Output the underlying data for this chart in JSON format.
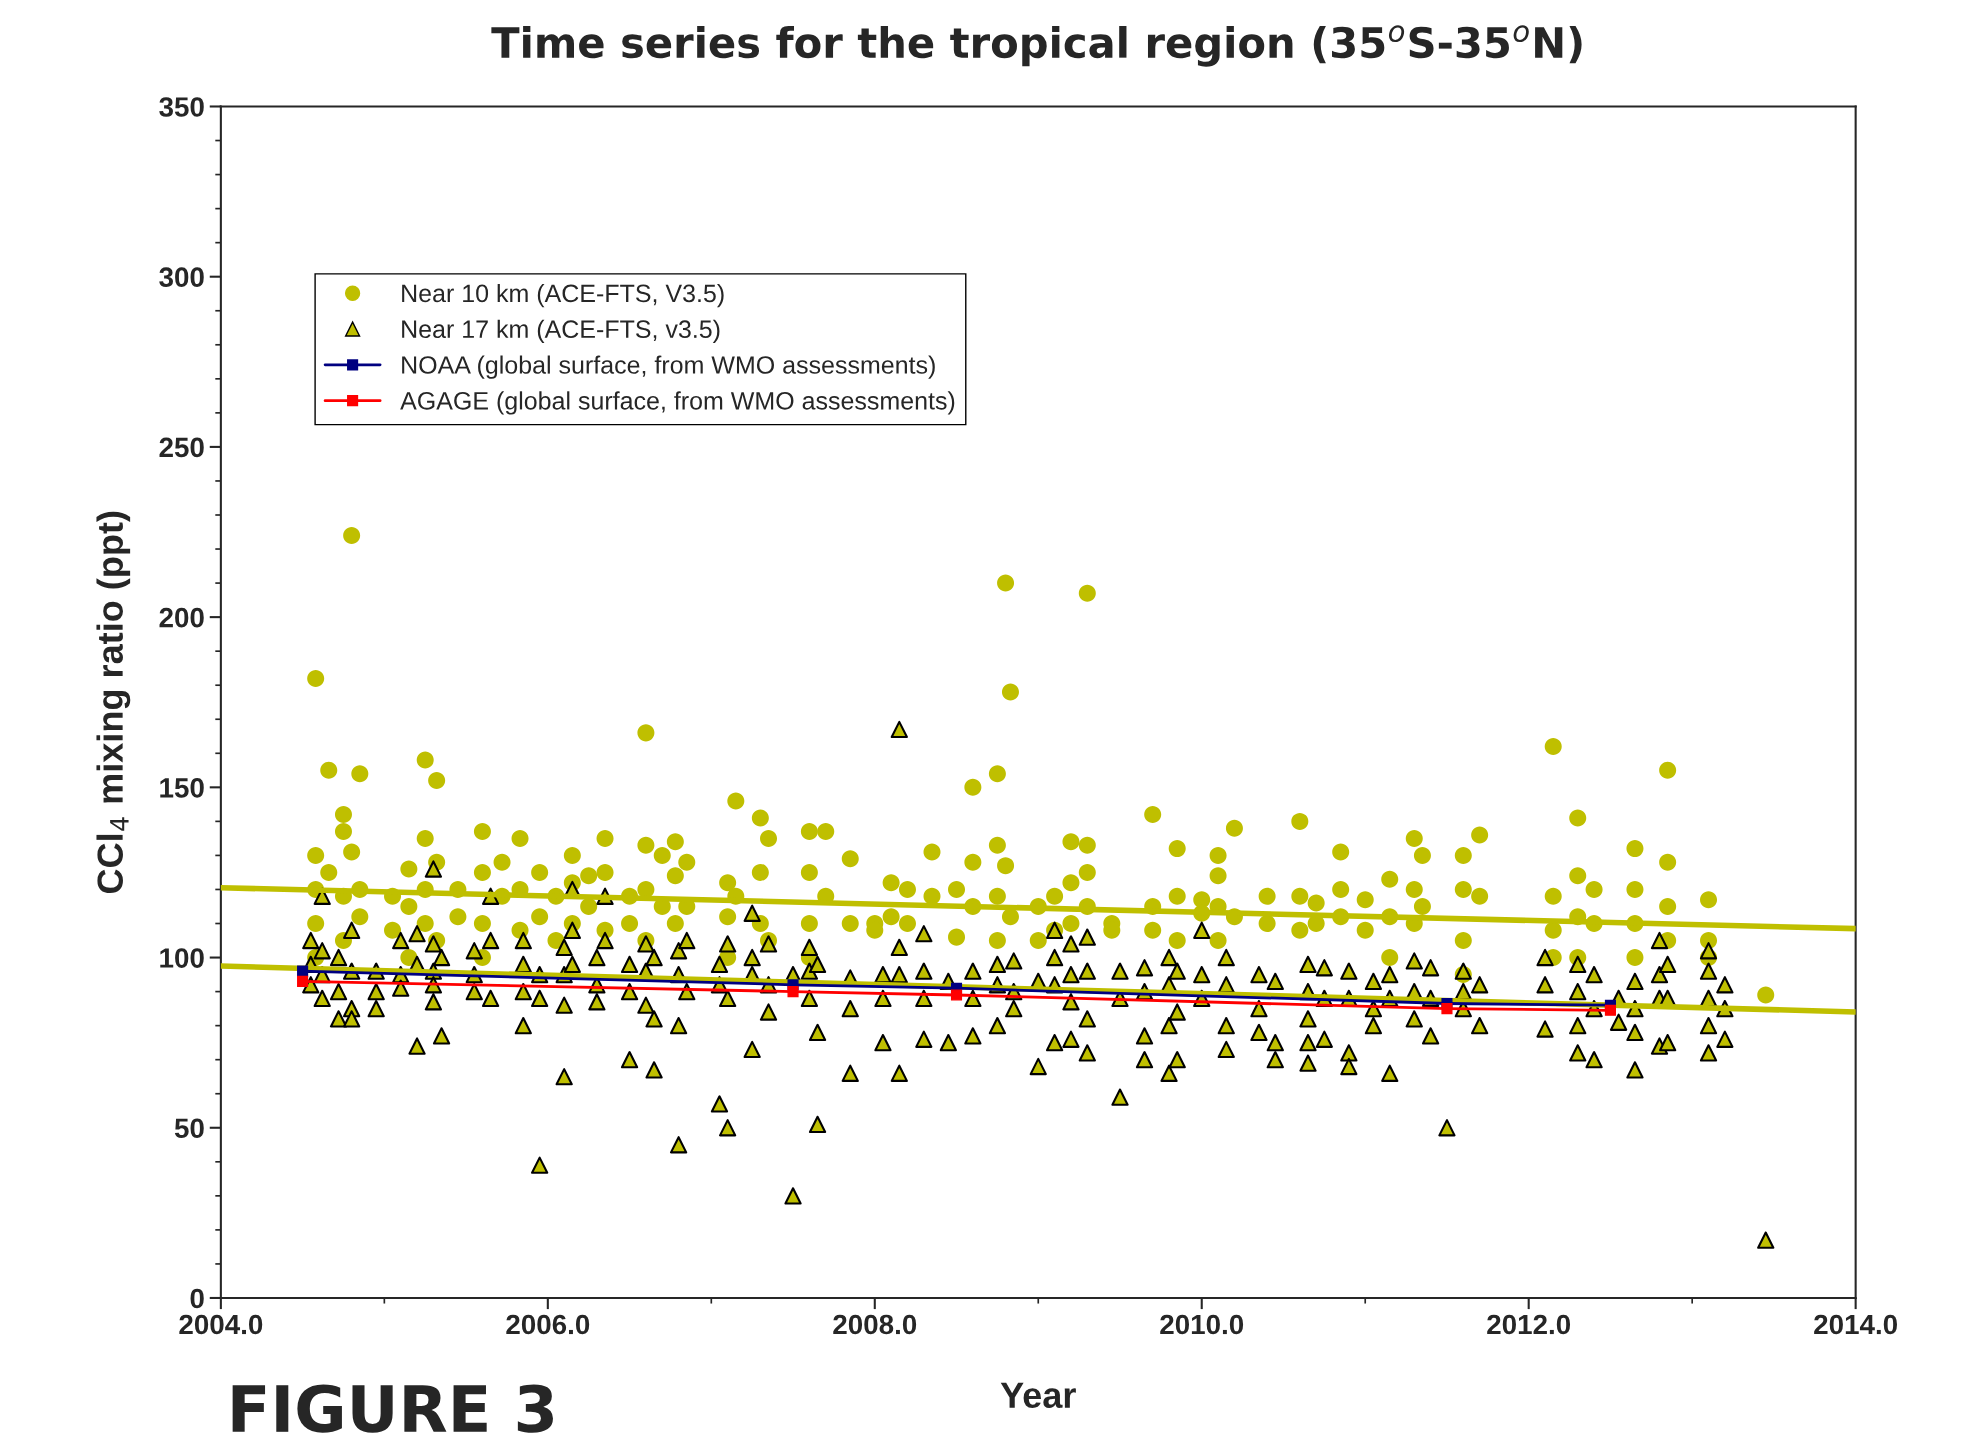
{
  "chart_data": {
    "type": "scatter",
    "title": "Time series for the tropical region (35$^{o}$S-35$^{o}$N)",
    "xlabel": "Year",
    "ylabel": "CCl$_{4}$ mixing ratio (ppt)",
    "xlim": [
      2004,
      2014
    ],
    "xticks": [
      {
        "value": 2004,
        "label": "2004.0"
      },
      {
        "value": 2006,
        "label": "2006.0"
      },
      {
        "value": 2008,
        "label": "2008.0"
      },
      {
        "value": 2010,
        "label": "2010.0"
      },
      {
        "value": 2012,
        "label": "2012.0"
      },
      {
        "value": 2014,
        "label": "2014.0"
      }
    ],
    "ylim": [
      0,
      350
    ],
    "yticks": [
      0,
      50,
      100,
      150,
      200,
      250,
      300,
      350
    ],
    "grid": false,
    "legend": "top left",
    "annotations": [
      "FIGURE 3"
    ],
    "series": [
      {
        "name": "Near 10 km (ACE-FTS, V3.5)",
        "marker": "circle",
        "color": "#bfbf00",
        "x": [
          2004.58,
          2004.58,
          2004.58,
          2004.58,
          2004.58,
          2004.66,
          2004.66,
          2004.75,
          2004.75,
          2004.75,
          2004.75,
          2004.8,
          2004.8,
          2004.85,
          2004.85,
          2004.85,
          2005.05,
          2005.05,
          2005.15,
          2005.15,
          2005.15,
          2005.25,
          2005.25,
          2005.25,
          2005.25,
          2005.32,
          2005.32,
          2005.32,
          2005.45,
          2005.45,
          2005.6,
          2005.6,
          2005.6,
          2005.6,
          2005.72,
          2005.72,
          2005.83,
          2005.83,
          2005.83,
          2005.95,
          2005.95,
          2006.05,
          2006.05,
          2006.15,
          2006.15,
          2006.15,
          2006.25,
          2006.25,
          2006.35,
          2006.35,
          2006.35,
          2006.5,
          2006.5,
          2006.6,
          2006.6,
          2006.6,
          2006.6,
          2006.7,
          2006.7,
          2006.78,
          2006.78,
          2006.78,
          2006.85,
          2006.85,
          2007.1,
          2007.1,
          2007.1,
          2007.15,
          2007.15,
          2007.3,
          2007.3,
          2007.3,
          2007.35,
          2007.35,
          2007.6,
          2007.6,
          2007.6,
          2007.6,
          2007.7,
          2007.7,
          2007.85,
          2007.85,
          2008.0,
          2008.0,
          2008.1,
          2008.1,
          2008.2,
          2008.2,
          2008.35,
          2008.35,
          2008.5,
          2008.5,
          2008.6,
          2008.6,
          2008.6,
          2008.75,
          2008.75,
          2008.75,
          2008.75,
          2008.8,
          2008.8,
          2008.83,
          2008.83,
          2009.0,
          2009.0,
          2009.1,
          2009.1,
          2009.2,
          2009.2,
          2009.2,
          2009.3,
          2009.3,
          2009.3,
          2009.3,
          2009.45,
          2009.45,
          2009.7,
          2009.7,
          2009.7,
          2009.85,
          2009.85,
          2009.85,
          2010.0,
          2010.0,
          2010.1,
          2010.1,
          2010.1,
          2010.1,
          2010.2,
          2010.2,
          2010.4,
          2010.4,
          2010.6,
          2010.6,
          2010.6,
          2010.7,
          2010.7,
          2010.85,
          2010.85,
          2010.85,
          2011.0,
          2011.0,
          2011.15,
          2011.15,
          2011.15,
          2011.3,
          2011.3,
          2011.3,
          2011.35,
          2011.35,
          2011.6,
          2011.6,
          2011.6,
          2011.6,
          2011.7,
          2011.7,
          2012.15,
          2012.15,
          2012.15,
          2012.15,
          2012.3,
          2012.3,
          2012.3,
          2012.3,
          2012.4,
          2012.4,
          2012.65,
          2012.65,
          2012.65,
          2012.65,
          2012.85,
          2012.85,
          2012.85,
          2012.85,
          2013.1,
          2013.1,
          2013.1,
          2013.45
        ],
        "values": [
          182,
          130,
          120,
          110,
          100,
          155,
          125,
          142,
          137,
          118,
          105,
          224,
          131,
          154,
          120,
          112,
          118,
          108,
          126,
          115,
          100,
          158,
          135,
          120,
          110,
          152,
          128,
          105,
          120,
          112,
          137,
          125,
          110,
          100,
          128,
          118,
          135,
          120,
          108,
          125,
          112,
          118,
          105,
          130,
          122,
          110,
          124,
          115,
          135,
          125,
          108,
          118,
          110,
          166,
          133,
          120,
          105,
          130,
          115,
          134,
          124,
          110,
          128,
          115,
          122,
          112,
          100,
          146,
          118,
          141,
          125,
          110,
          135,
          105,
          137,
          125,
          110,
          100,
          137,
          118,
          129,
          110,
          110,
          108,
          122,
          112,
          120,
          110,
          131,
          118,
          106,
          120,
          150,
          128,
          115,
          154,
          133,
          118,
          105,
          210,
          127,
          178,
          112,
          115,
          105,
          118,
          108,
          134,
          122,
          110,
          207,
          133,
          125,
          115,
          110,
          108,
          142,
          115,
          108,
          132,
          118,
          105,
          117,
          113,
          130,
          124,
          115,
          105,
          138,
          112,
          118,
          110,
          140,
          118,
          108,
          116,
          110,
          131,
          120,
          112,
          117,
          108,
          123,
          112,
          100,
          135,
          120,
          110,
          130,
          115,
          130,
          120,
          105,
          95,
          136,
          118,
          162,
          118,
          108,
          100,
          141,
          124,
          112,
          100,
          120,
          110,
          132,
          120,
          110,
          100,
          155,
          128,
          115,
          105,
          117,
          105,
          100,
          89
        ]
      },
      {
        "name": "Near 17 km (ACE-FTS, v3.5)",
        "marker": "triangle",
        "color": "#bfbf00",
        "x": [
          2004.55,
          2004.55,
          2004.55,
          2004.62,
          2004.62,
          2004.62,
          2004.62,
          2004.72,
          2004.72,
          2004.72,
          2004.8,
          2004.8,
          2004.8,
          2004.8,
          2004.95,
          2004.95,
          2004.95,
          2005.1,
          2005.1,
          2005.1,
          2005.2,
          2005.2,
          2005.2,
          2005.3,
          2005.3,
          2005.3,
          2005.3,
          2005.3,
          2005.35,
          2005.35,
          2005.55,
          2005.55,
          2005.55,
          2005.65,
          2005.65,
          2005.65,
          2005.85,
          2005.85,
          2005.85,
          2005.85,
          2005.95,
          2005.95,
          2005.95,
          2006.1,
          2006.1,
          2006.1,
          2006.1,
          2006.15,
          2006.15,
          2006.15,
          2006.3,
          2006.3,
          2006.3,
          2006.35,
          2006.35,
          2006.5,
          2006.5,
          2006.5,
          2006.6,
          2006.6,
          2006.6,
          2006.65,
          2006.65,
          2006.65,
          2006.8,
          2006.8,
          2006.8,
          2006.8,
          2006.85,
          2006.85,
          2007.05,
          2007.05,
          2007.05,
          2007.1,
          2007.1,
          2007.1,
          2007.25,
          2007.25,
          2007.25,
          2007.25,
          2007.35,
          2007.35,
          2007.35,
          2007.5,
          2007.5,
          2007.6,
          2007.6,
          2007.6,
          2007.65,
          2007.65,
          2007.65,
          2007.85,
          2007.85,
          2007.85,
          2008.05,
          2008.05,
          2008.05,
          2008.15,
          2008.15,
          2008.15,
          2008.15,
          2008.3,
          2008.3,
          2008.3,
          2008.3,
          2008.45,
          2008.45,
          2008.6,
          2008.6,
          2008.6,
          2008.75,
          2008.75,
          2008.75,
          2008.85,
          2008.85,
          2008.85,
          2009.0,
          2009.0,
          2009.1,
          2009.1,
          2009.1,
          2009.1,
          2009.2,
          2009.2,
          2009.2,
          2009.2,
          2009.3,
          2009.3,
          2009.3,
          2009.3,
          2009.5,
          2009.5,
          2009.5,
          2009.65,
          2009.65,
          2009.65,
          2009.65,
          2009.8,
          2009.8,
          2009.8,
          2009.8,
          2009.85,
          2009.85,
          2009.85,
          2010.0,
          2010.0,
          2010.0,
          2010.15,
          2010.15,
          2010.15,
          2010.15,
          2010.35,
          2010.35,
          2010.35,
          2010.45,
          2010.45,
          2010.45,
          2010.65,
          2010.65,
          2010.65,
          2010.65,
          2010.65,
          2010.75,
          2010.75,
          2010.75,
          2010.9,
          2010.9,
          2010.9,
          2010.9,
          2011.05,
          2011.05,
          2011.05,
          2011.15,
          2011.15,
          2011.15,
          2011.3,
          2011.3,
          2011.3,
          2011.4,
          2011.4,
          2011.4,
          2011.5,
          2011.6,
          2011.6,
          2011.6,
          2011.7,
          2011.7,
          2012.1,
          2012.1,
          2012.1,
          2012.3,
          2012.3,
          2012.3,
          2012.3,
          2012.4,
          2012.4,
          2012.4,
          2012.55,
          2012.55,
          2012.65,
          2012.65,
          2012.65,
          2012.65,
          2012.8,
          2012.8,
          2012.8,
          2012.8,
          2012.85,
          2012.85,
          2012.85,
          2013.1,
          2013.1,
          2013.1,
          2013.1,
          2013.1,
          2013.2,
          2013.2,
          2013.2,
          2013.45
        ],
        "values": [
          105,
          98,
          92,
          118,
          102,
          95,
          88,
          100,
          82,
          90,
          108,
          96,
          85,
          82,
          96,
          90,
          85,
          105,
          95,
          91,
          107,
          98,
          74,
          126,
          104,
          96,
          87,
          92,
          77,
          100,
          102,
          95,
          90,
          118,
          105,
          88,
          105,
          98,
          90,
          80,
          95,
          88,
          39,
          103,
          95,
          86,
          65,
          120,
          108,
          98,
          100,
          92,
          87,
          118,
          105,
          98,
          90,
          70,
          104,
          96,
          86,
          100,
          67,
          82,
          102,
          95,
          80,
          45,
          105,
          90,
          98,
          92,
          57,
          104,
          88,
          50,
          113,
          100,
          95,
          73,
          104,
          92,
          84,
          95,
          30,
          103,
          96,
          88,
          98,
          78,
          51,
          94,
          85,
          66,
          95,
          88,
          75,
          167,
          103,
          95,
          66,
          107,
          96,
          88,
          76,
          93,
          75,
          96,
          88,
          77,
          98,
          92,
          80,
          99,
          90,
          85,
          93,
          68,
          108,
          100,
          92,
          75,
          104,
          95,
          87,
          76,
          106,
          96,
          82,
          72,
          96,
          88,
          59,
          97,
          90,
          77,
          70,
          100,
          92,
          80,
          66,
          96,
          84,
          70,
          108,
          95,
          88,
          100,
          92,
          80,
          73,
          95,
          85,
          78,
          93,
          75,
          70,
          98,
          90,
          82,
          75,
          69,
          97,
          88,
          76,
          96,
          88,
          72,
          68,
          93,
          85,
          80,
          95,
          88,
          66,
          99,
          90,
          82,
          97,
          88,
          77,
          50,
          96,
          90,
          85,
          92,
          80,
          100,
          92,
          79,
          98,
          90,
          80,
          72,
          95,
          85,
          70,
          88,
          81,
          93,
          85,
          78,
          67,
          105,
          95,
          88,
          74,
          98,
          88,
          75,
          102,
          96,
          88,
          80,
          72,
          92,
          85,
          76,
          17
        ]
      },
      {
        "type": "line",
        "marker": "none",
        "color": "#bfbf00",
        "x": [
          2004,
          2014
        ],
        "values": [
          120.5,
          108.5
        ]
      },
      {
        "type": "line",
        "marker": "none",
        "color": "#bfbf00",
        "x": [
          2004,
          2014
        ],
        "values": [
          97.5,
          84
        ]
      },
      {
        "name": "NOAA (global surface, from WMO assessments)",
        "type": "line",
        "marker": "square",
        "color": "#000080",
        "x": [
          2004.5,
          2007.5,
          2008.5,
          2011.5,
          2012.5
        ],
        "values": [
          96,
          92,
          91,
          86.5,
          86
        ]
      },
      {
        "name": "AGAGE (global surface, from WMO assessments)",
        "type": "line",
        "marker": "square",
        "color": "#ff0000",
        "x": [
          2004.5,
          2007.5,
          2008.5,
          2011.5,
          2012.5
        ],
        "values": [
          93,
          90,
          89,
          85,
          84.5
        ]
      }
    ]
  }
}
